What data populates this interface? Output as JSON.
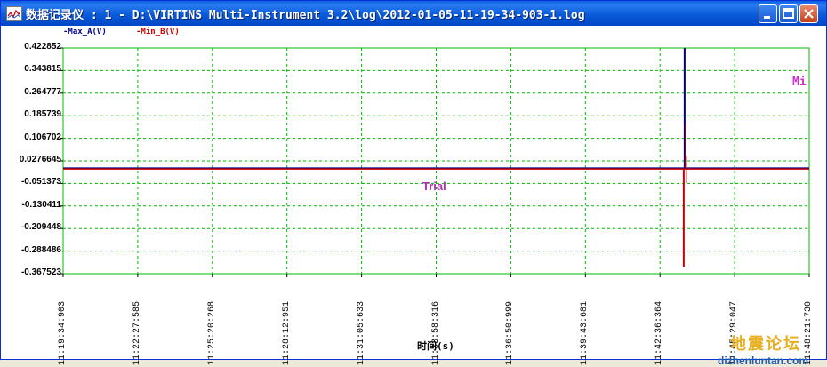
{
  "window": {
    "title": "数据记录仪 : 1 - D:\\VIRTINS Multi-Instrument 3.2\\log\\2012-01-05-11-19-34-903-1.log"
  },
  "legend": {
    "a_label": "-Max_A(V)",
    "b_label": "-Min_B(V)",
    "a_color": "#00008b",
    "b_color": "#cc0000"
  },
  "chart_data": {
    "type": "line",
    "xlabel": "时间(s)",
    "y_ticks": [
      "0.422852",
      "0.343815",
      "0.264777",
      "0.185739",
      "0.106702",
      "0.0276645",
      "-0.051373",
      "-0.130411",
      "-0.209448",
      "-0.288486",
      "-0.367523"
    ],
    "x_ticks": [
      "11:19:34:903",
      "11:22:27:585",
      "11:25:20:268",
      "11:28:12:951",
      "11:31:05:633",
      "11:33:58:316",
      "11:36:50:999",
      "11:39:43:681",
      "11:42:36:364",
      "11:45:29:047",
      "11:48:21:730"
    ],
    "ylim": [
      -0.367523,
      0.422852
    ],
    "grid": true,
    "grid_color": "#00bb00",
    "series": [
      {
        "name": "Max_A(V)",
        "color": "#00008b",
        "baseline": 0.0
      },
      {
        "name": "Min_B(V)",
        "color": "#cc0000",
        "baseline": 0.0
      }
    ]
  },
  "overlay": {
    "trial_text": "Trial",
    "mi_text": "Mi"
  },
  "watermark": {
    "cn": "地震论坛",
    "en": "dizhenluntan.com"
  }
}
